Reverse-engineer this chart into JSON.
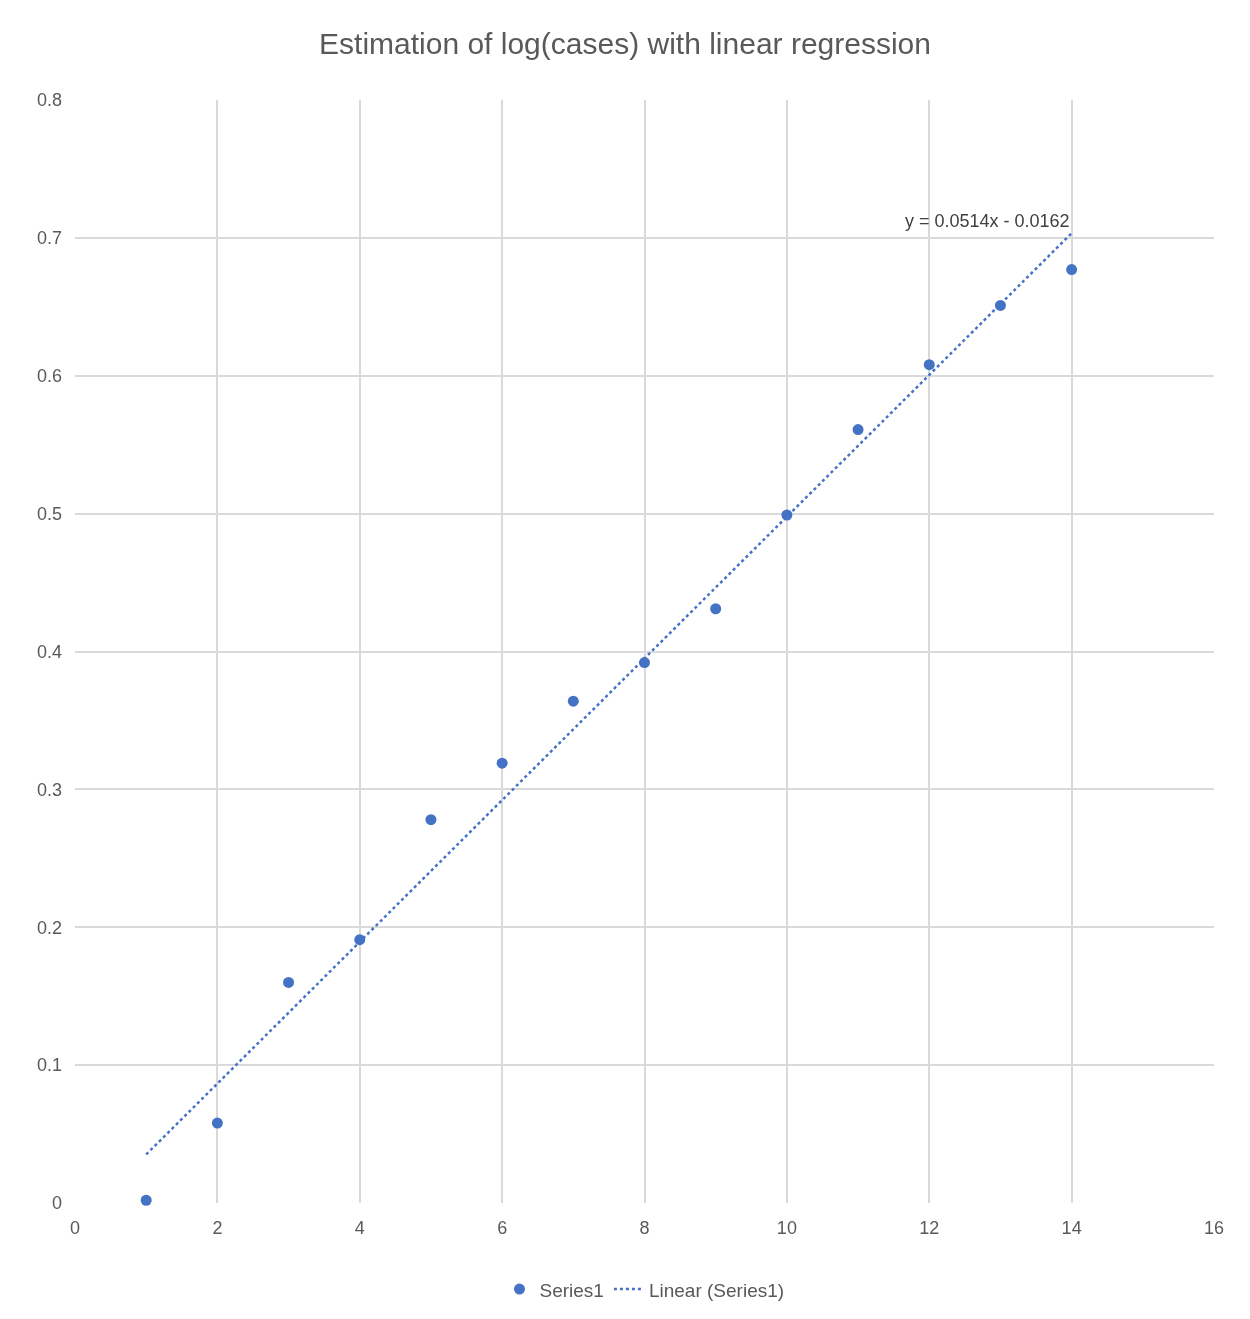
{
  "chart_data": {
    "type": "scatter",
    "title": "Estimation of log(cases) with linear regression",
    "series": [
      {
        "name": "Series1",
        "type": "scatter",
        "marker": "circle",
        "color": "#4472c4",
        "x": [
          1,
          2,
          3,
          4,
          5,
          6,
          7,
          8,
          9,
          10,
          11,
          12,
          13,
          14
        ],
        "values": [
          0.002,
          0.058,
          0.16,
          0.191,
          0.278,
          0.319,
          0.364,
          0.392,
          0.431,
          0.499,
          0.561,
          0.608,
          0.651,
          0.677
        ]
      },
      {
        "name": "Linear (Series1)",
        "type": "line",
        "marker": "none",
        "line_style": "dotted",
        "color": "#4472c4",
        "x": [
          1,
          14
        ],
        "values": [
          0.0352,
          0.7034
        ]
      }
    ],
    "annotations": [
      {
        "text": "y = 0.0514x - 0.0162",
        "x": 14,
        "y": 0.7034
      }
    ],
    "xlim": [
      0,
      16
    ],
    "xticks": [
      0,
      2,
      4,
      6,
      8,
      10,
      12,
      14,
      16
    ],
    "ylim": [
      0,
      0.8
    ],
    "yticks": [
      0,
      0.1,
      0.2,
      0.3,
      0.4,
      0.5,
      0.6,
      0.7,
      0.8
    ],
    "grid": true,
    "legend": "bottom"
  }
}
